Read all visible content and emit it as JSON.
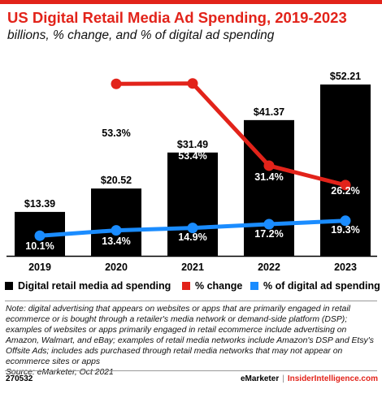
{
  "title": "US Digital Retail Media Ad Spending, 2019-2023",
  "subtitle": "billions, % change, and % of digital ad spending",
  "chart_data": {
    "type": "bar",
    "categories": [
      "2019",
      "2020",
      "2021",
      "2022",
      "2023"
    ],
    "series": [
      {
        "name": "Digital retail media ad spending",
        "type": "bar",
        "color": "#000000",
        "values": [
          13.39,
          20.52,
          31.49,
          41.37,
          52.21
        ],
        "labels": [
          "$13.39",
          "$20.52",
          "$31.49",
          "$41.37",
          "$52.21"
        ]
      },
      {
        "name": "% change",
        "type": "line",
        "color": "#e2231a",
        "values": [
          null,
          53.3,
          53.4,
          31.4,
          26.2
        ],
        "labels": [
          "",
          "53.3%",
          "53.4%",
          "31.4%",
          "26.2%"
        ]
      },
      {
        "name": "% of digital ad spending",
        "type": "line",
        "color": "#1a8cff",
        "values": [
          10.1,
          13.4,
          14.9,
          17.2,
          19.3
        ],
        "labels": [
          "10.1%",
          "13.4%",
          "14.9%",
          "17.2%",
          "19.3%"
        ]
      }
    ],
    "legend_position": "bottom"
  },
  "legend": [
    {
      "label": "Digital retail media ad spending",
      "color": "#000000"
    },
    {
      "label": "% change",
      "color": "#e2231a"
    },
    {
      "label": "% of digital ad spending",
      "color": "#1a8cff"
    }
  ],
  "note": "Note: digital advertising that appears on websites or apps that are primarily engaged in retail ecommerce or is bought through a retailer's media network or demand-side platform (DSP); examples of websites or apps primarily engaged in retail ecommerce include advertising on Amazon, Walmart, and eBay; examples of retail media networks include Amazon's DSP and Etsy's Offsite Ads; includes ads purchased through retail media networks that may not appear on ecommerce sites or apps",
  "source": "Source: eMarketer, Oct 2021",
  "footer": {
    "id": "270532",
    "brand": "eMarketer",
    "separator": "|",
    "brand2": "InsiderIntelligence.com"
  }
}
